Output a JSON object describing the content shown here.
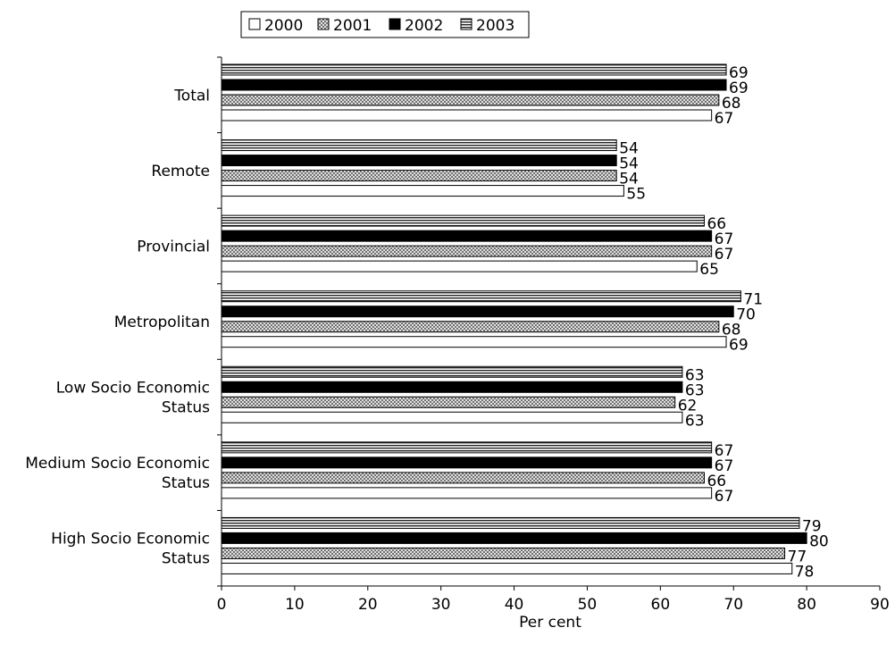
{
  "chart_data": {
    "type": "bar",
    "orientation": "horizontal",
    "categories": [
      "Total",
      "Remote",
      "Provincial",
      "Metropolitan",
      "Low Socio Economic Status",
      "Medium Socio Economic Status",
      "High Socio Economic Status"
    ],
    "series": [
      {
        "name": "2000",
        "pattern": "white",
        "values": [
          67,
          55,
          65,
          69,
          63,
          67,
          78
        ]
      },
      {
        "name": "2001",
        "pattern": "crosshatch",
        "values": [
          68,
          54,
          67,
          68,
          62,
          66,
          77
        ]
      },
      {
        "name": "2002",
        "pattern": "black",
        "values": [
          69,
          54,
          67,
          70,
          63,
          67,
          80
        ]
      },
      {
        "name": "2003",
        "pattern": "horizontal-stripes",
        "values": [
          69,
          54,
          66,
          71,
          63,
          67,
          79
        ]
      }
    ],
    "xlabel": "Per cent",
    "ylabel": "",
    "title": "",
    "xlim": [
      0,
      90
    ],
    "xticks": [
      0,
      10,
      20,
      30,
      40,
      50,
      60,
      70,
      80,
      90
    ],
    "grid": false,
    "legend_position": "top",
    "colors": {
      "bar_outline": "#000000",
      "solid": "#000000",
      "fill_light": "#ffffff",
      "hatch": "#555555"
    }
  }
}
